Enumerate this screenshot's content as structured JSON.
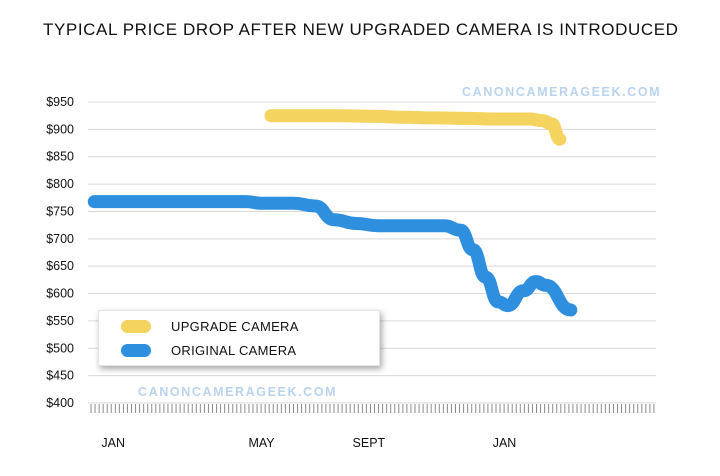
{
  "title": "TYPICAL PRICE DROP AFTER NEW UPGRADED CAMERA IS INTRODUCED",
  "watermarks": [
    "CANONCAMERAGEEK.COM",
    "CANONCAMERAGEEK.COM"
  ],
  "colors": {
    "upgrade": "#f4d35e",
    "original": "#2f8fdf",
    "grid": "#d9d9d9",
    "watermark": "#b9d3ee"
  },
  "chart_data": {
    "type": "line",
    "title": "TYPICAL PRICE DROP AFTER NEW UPGRADED CAMERA IS INTRODUCED",
    "xlabel": "",
    "ylabel": "",
    "ylim": [
      400,
      950
    ],
    "xlim": [
      0,
      18
    ],
    "y_tick_labels": [
      "$400",
      "$450",
      "$500",
      "$550",
      "$600",
      "$650",
      "$700",
      "$750",
      "$800",
      "$850",
      "$900",
      "$950"
    ],
    "y_tick_values": [
      400,
      450,
      500,
      550,
      600,
      650,
      700,
      750,
      800,
      850,
      900,
      950
    ],
    "x_tick_labels": [
      "JAN",
      "MAY",
      "SEPT",
      "JAN"
    ],
    "x_tick_values": [
      0.8,
      5.5,
      8.9,
      13.2
    ],
    "grid": true,
    "legend_placement": "bottom-left",
    "series": [
      {
        "name": "UPGRADE CAMERA",
        "color": "#f4d35e",
        "x": [
          5.8,
          7,
          8,
          9,
          10,
          11,
          12,
          13,
          14,
          14.4,
          14.7,
          14.95
        ],
        "y": [
          925,
          925,
          925,
          924,
          922,
          921,
          920,
          919,
          919,
          916,
          910,
          882
        ]
      },
      {
        "name": "ORIGINAL CAMERA",
        "color": "#2f8fdf",
        "x": [
          0.2,
          2,
          4,
          5,
          5.5,
          6.5,
          7.2,
          7.8,
          8.5,
          9.2,
          10.3,
          11.3,
          11.8,
          12.2,
          12.6,
          13,
          13.3,
          13.8,
          14.2,
          14.5,
          15.3
        ],
        "y": [
          768,
          768,
          768,
          768,
          765,
          765,
          760,
          735,
          728,
          724,
          724,
          724,
          716,
          680,
          630,
          585,
          578,
          605,
          622,
          615,
          570
        ]
      }
    ]
  }
}
